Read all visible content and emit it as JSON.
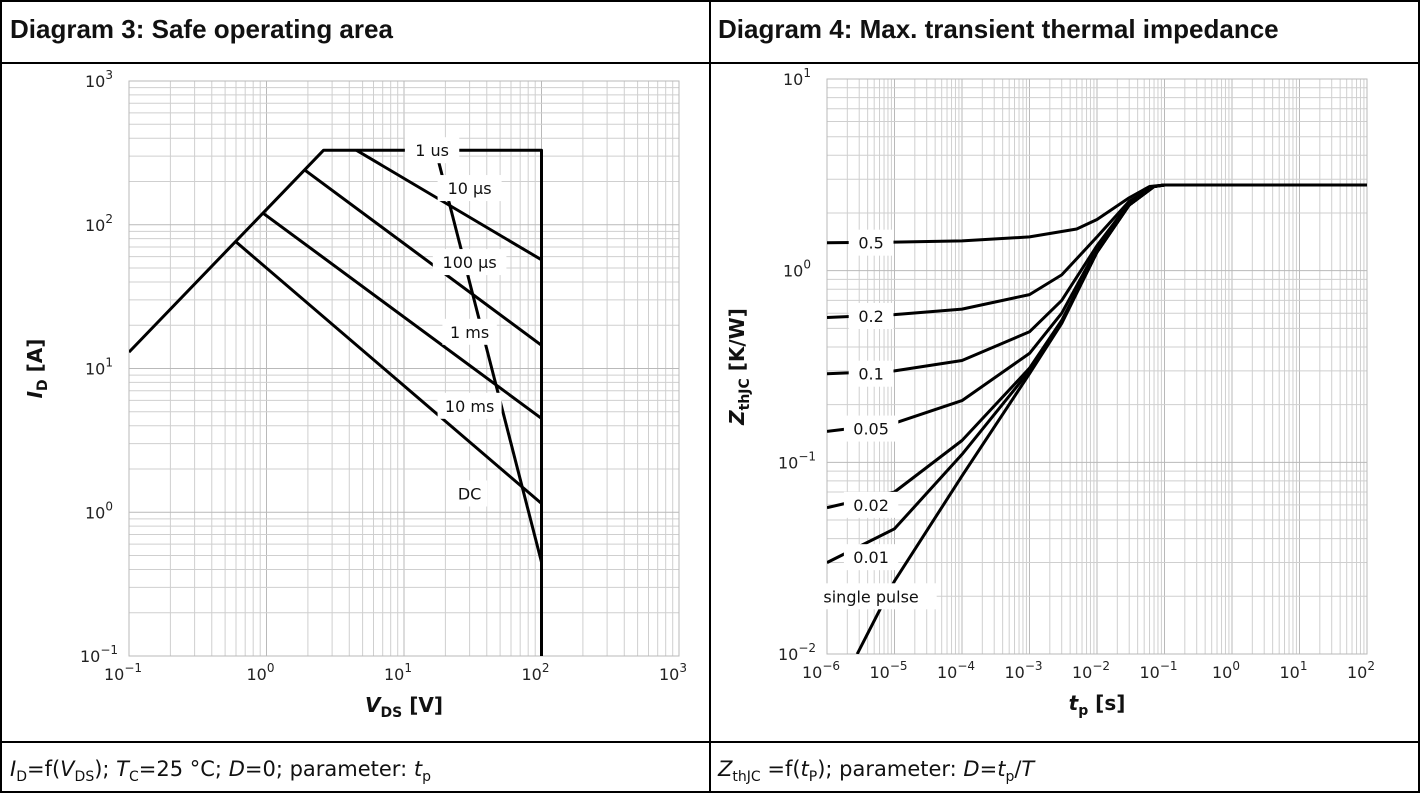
{
  "panel_left": {
    "title": "Diagram 3: Safe operating area",
    "caption": {
      "i_sym": "I",
      "i_sub": "D",
      "eq": "=f(",
      "v_sym": "V",
      "v_sub": "DS",
      "rest": "); ",
      "tc_sym": "T",
      "tc_sub": "C",
      "tc_val": "=25 °C; ",
      "d_sym": "D",
      "d_val": "=0; parameter: ",
      "t_sym": "t",
      "t_sub": "p"
    }
  },
  "panel_right": {
    "title": "Diagram 4: Max. transient thermal impedance",
    "caption": {
      "z_sym": "Z",
      "z_sub": "thJC",
      "eq": " =f(",
      "t_sym": "t",
      "t_sub": "P",
      "rest": "); parameter: ",
      "d_sym": "D",
      "d_eq": "=",
      "t2_sym": "t",
      "t2_sub": "p",
      "slash": "/",
      "T_sym": "T"
    }
  },
  "chart_data": [
    {
      "type": "line",
      "title": "Diagram 3: Safe operating area",
      "xlabel": {
        "sym": "V",
        "sub": "DS",
        "unit": " [V]"
      },
      "ylabel": {
        "sym": "I",
        "sub": "D",
        "unit": " [A]"
      },
      "xscale": "log",
      "yscale": "log",
      "xlim": [
        0.1,
        1000
      ],
      "ylim": [
        0.1,
        1000
      ],
      "grid": true,
      "xticks": [
        {
          "b": "10",
          "e": "−1"
        },
        {
          "b": "10",
          "e": "0"
        },
        {
          "b": "10",
          "e": "1"
        },
        {
          "b": "10",
          "e": "2"
        },
        {
          "b": "10",
          "e": "3"
        }
      ],
      "yticks": [
        {
          "b": "10",
          "e": "−1"
        },
        {
          "b": "10",
          "e": "0"
        },
        {
          "b": "10",
          "e": "1"
        },
        {
          "b": "10",
          "e": "2"
        },
        {
          "b": "10",
          "e": "3"
        }
      ],
      "series": [
        {
          "name": "1 us",
          "label_at": [
            16,
            330
          ],
          "points": [
            [
              0.1,
              13
            ],
            [
              2.6,
              330
            ],
            [
              100,
              330
            ],
            [
              100,
              0.1
            ]
          ]
        },
        {
          "name": "10 µs",
          "label_at": [
            30,
            180
          ],
          "points": [
            [
              4.5,
              330
            ],
            [
              100,
              57
            ]
          ]
        },
        {
          "name": "100 µs",
          "label_at": [
            30,
            55
          ],
          "points": [
            [
              1.9,
              240
            ],
            [
              100,
              14.5
            ]
          ]
        },
        {
          "name": "1 ms",
          "label_at": [
            30,
            18
          ],
          "points": [
            [
              0.95,
              120
            ],
            [
              100,
              4.5
            ]
          ]
        },
        {
          "name": "10 ms",
          "label_at": [
            30,
            5.5
          ],
          "points": [
            [
              0.6,
              76
            ],
            [
              100,
              1.15
            ]
          ]
        },
        {
          "name": "DC",
          "label_at": [
            30,
            1.35
          ],
          "points": [
            [
              17,
              330
            ],
            [
              100,
              0.45
            ]
          ]
        }
      ]
    },
    {
      "type": "line",
      "title": "Diagram 4: Max. transient thermal impedance",
      "xlabel": {
        "sym": "t",
        "sub": "p",
        "unit": " [s]"
      },
      "ylabel": {
        "sym": "Z",
        "sub": "thJC",
        "unit": " [K/W]"
      },
      "xscale": "log",
      "yscale": "log",
      "xlim": [
        1e-06,
        100
      ],
      "ylim": [
        0.01,
        10
      ],
      "grid": true,
      "xticks": [
        {
          "b": "10",
          "e": "−6"
        },
        {
          "b": "10",
          "e": "−5"
        },
        {
          "b": "10",
          "e": "−4"
        },
        {
          "b": "10",
          "e": "−3"
        },
        {
          "b": "10",
          "e": "−2"
        },
        {
          "b": "10",
          "e": "−1"
        },
        {
          "b": "10",
          "e": "0"
        },
        {
          "b": "10",
          "e": "1"
        },
        {
          "b": "10",
          "e": "2"
        }
      ],
      "yticks": [
        {
          "b": "10",
          "e": "−2"
        },
        {
          "b": "10",
          "e": "−1"
        },
        {
          "b": "10",
          "e": "0"
        },
        {
          "b": "10",
          "e": "1"
        }
      ],
      "series": [
        {
          "name": "0.5",
          "label_at": [
            4.5e-06,
            1.4
          ],
          "points": [
            [
              1e-06,
              1.4
            ],
            [
              1e-05,
              1.41
            ],
            [
              0.0001,
              1.43
            ],
            [
              0.001,
              1.5
            ],
            [
              0.005,
              1.65
            ],
            [
              0.01,
              1.85
            ],
            [
              0.03,
              2.4
            ],
            [
              0.06,
              2.75
            ],
            [
              0.1,
              2.8
            ],
            [
              100,
              2.8
            ]
          ]
        },
        {
          "name": "0.2",
          "label_at": [
            4.5e-06,
            0.58
          ],
          "points": [
            [
              1e-06,
              0.57
            ],
            [
              1e-05,
              0.59
            ],
            [
              0.0001,
              0.63
            ],
            [
              0.001,
              0.75
            ],
            [
              0.003,
              0.95
            ],
            [
              0.01,
              1.5
            ],
            [
              0.03,
              2.3
            ],
            [
              0.07,
              2.75
            ],
            [
              0.1,
              2.8
            ],
            [
              100,
              2.8
            ]
          ]
        },
        {
          "name": "0.1",
          "label_at": [
            4.5e-06,
            0.29
          ],
          "points": [
            [
              1e-06,
              0.29
            ],
            [
              1e-05,
              0.3
            ],
            [
              0.0001,
              0.34
            ],
            [
              0.001,
              0.48
            ],
            [
              0.003,
              0.7
            ],
            [
              0.01,
              1.35
            ],
            [
              0.03,
              2.25
            ],
            [
              0.07,
              2.75
            ],
            [
              0.1,
              2.8
            ],
            [
              100,
              2.8
            ]
          ]
        },
        {
          "name": "0.05",
          "label_at": [
            4.5e-06,
            0.15
          ],
          "points": [
            [
              1e-06,
              0.145
            ],
            [
              1e-05,
              0.16
            ],
            [
              0.0001,
              0.21
            ],
            [
              0.001,
              0.37
            ],
            [
              0.003,
              0.6
            ],
            [
              0.01,
              1.3
            ],
            [
              0.03,
              2.2
            ],
            [
              0.07,
              2.75
            ],
            [
              0.1,
              2.8
            ],
            [
              100,
              2.8
            ]
          ]
        },
        {
          "name": "0.02",
          "label_at": [
            4.5e-06,
            0.06
          ],
          "points": [
            [
              1e-06,
              0.058
            ],
            [
              1e-05,
              0.07
            ],
            [
              0.0001,
              0.13
            ],
            [
              0.001,
              0.31
            ],
            [
              0.003,
              0.55
            ],
            [
              0.01,
              1.25
            ],
            [
              0.03,
              2.2
            ],
            [
              0.07,
              2.75
            ],
            [
              0.1,
              2.8
            ],
            [
              100,
              2.8
            ]
          ]
        },
        {
          "name": "0.01",
          "label_at": [
            4.5e-06,
            0.032
          ],
          "points": [
            [
              1e-06,
              0.03
            ],
            [
              1e-05,
              0.045
            ],
            [
              0.0001,
              0.11
            ],
            [
              0.001,
              0.3
            ],
            [
              0.003,
              0.54
            ],
            [
              0.01,
              1.25
            ],
            [
              0.03,
              2.2
            ],
            [
              0.07,
              2.75
            ],
            [
              0.1,
              2.8
            ],
            [
              100,
              2.8
            ]
          ]
        },
        {
          "name": "single pulse",
          "label_at": [
            4.5e-06,
            0.02
          ],
          "points": [
            [
              2.8e-06,
              0.01
            ],
            [
              1e-05,
              0.024
            ],
            [
              0.0001,
              0.085
            ],
            [
              0.001,
              0.29
            ],
            [
              0.003,
              0.53
            ],
            [
              0.01,
              1.25
            ],
            [
              0.03,
              2.2
            ],
            [
              0.07,
              2.75
            ],
            [
              0.1,
              2.8
            ],
            [
              100,
              2.8
            ]
          ]
        }
      ]
    }
  ]
}
